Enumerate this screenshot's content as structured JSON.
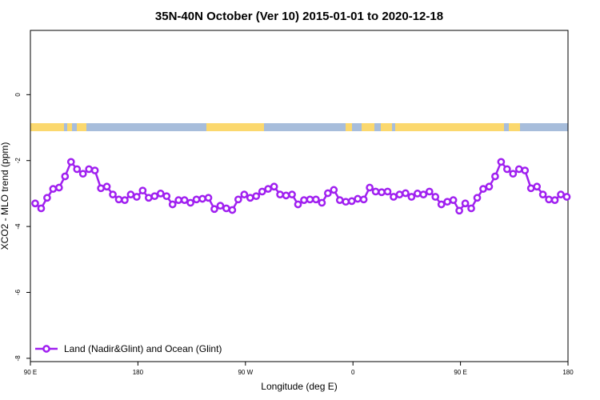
{
  "chart_data": {
    "type": "line",
    "title": "35N-40N October (Ver 10)   2015-01-01 to 2020-12-18",
    "xlabel": "Longitude (deg E)",
    "ylabel": "XCO2 - MLO trend (ppm)",
    "x": [
      94,
      99,
      104,
      109,
      114,
      119,
      124,
      129,
      134,
      139,
      144,
      149,
      154,
      159,
      164,
      169,
      174,
      179,
      184,
      189,
      194,
      199,
      204,
      209,
      214,
      219,
      224,
      229,
      234,
      239,
      244,
      249,
      254,
      259,
      264,
      269,
      274,
      279,
      284,
      289,
      294,
      299,
      304,
      309,
      314,
      319,
      324,
      329,
      334,
      339,
      344,
      349,
      354,
      359,
      364,
      369,
      374,
      379,
      384,
      389,
      394,
      399,
      404,
      409,
      414,
      419,
      424,
      429,
      434,
      439,
      444,
      449,
      454,
      459,
      464,
      469,
      474,
      479,
      484,
      489,
      494,
      499,
      504,
      509,
      514,
      519,
      524,
      529,
      534,
      539
    ],
    "series": [
      {
        "name": "Land (Nadir&Glint) and Ocean (Glint)",
        "color": "#a020f0",
        "values": [
          -3.3,
          -3.45,
          -3.13,
          -2.86,
          -2.82,
          -2.48,
          -2.04,
          -2.26,
          -2.4,
          -2.26,
          -2.3,
          -2.84,
          -2.79,
          -3.03,
          -3.18,
          -3.2,
          -3.03,
          -3.1,
          -2.91,
          -3.13,
          -3.08,
          -3.0,
          -3.08,
          -3.33,
          -3.2,
          -3.2,
          -3.28,
          -3.18,
          -3.16,
          -3.13,
          -3.47,
          -3.37,
          -3.45,
          -3.5,
          -3.18,
          -3.03,
          -3.13,
          -3.08,
          -2.94,
          -2.86,
          -2.79,
          -3.03,
          -3.06,
          -3.03,
          -3.33,
          -3.2,
          -3.18,
          -3.18,
          -3.28,
          -2.99,
          -2.89,
          -3.2,
          -3.25,
          -3.23,
          -3.16,
          -3.18,
          -2.82,
          -2.94,
          -2.96,
          -2.94,
          -3.1,
          -3.03,
          -2.99,
          -3.1,
          -3.0,
          -3.03,
          -2.94,
          -3.1,
          -3.33,
          -3.25,
          -3.2,
          -3.52,
          -3.3,
          -3.45,
          -3.13,
          -2.86,
          -2.79,
          -2.48,
          -2.04,
          -2.26,
          -2.4,
          -2.26,
          -2.3,
          -2.84,
          -2.79,
          -3.03,
          -3.18,
          -3.2,
          -3.03,
          -3.1
        ]
      }
    ],
    "xlim": [
      90,
      540
    ],
    "xticks": [
      {
        "value": 90,
        "label": "90 E"
      },
      180,
      {
        "value": 270,
        "label": "90 W"
      },
      {
        "value": 360,
        "label": "0"
      },
      {
        "value": 450,
        "label": "90 E"
      },
      {
        "value": 540,
        "label": "180"
      }
    ],
    "ylim": [
      -8.1,
      1.95
    ],
    "yticks": [
      0,
      -2,
      -4,
      -6,
      -8
    ],
    "legend": "bottomleft"
  }
}
